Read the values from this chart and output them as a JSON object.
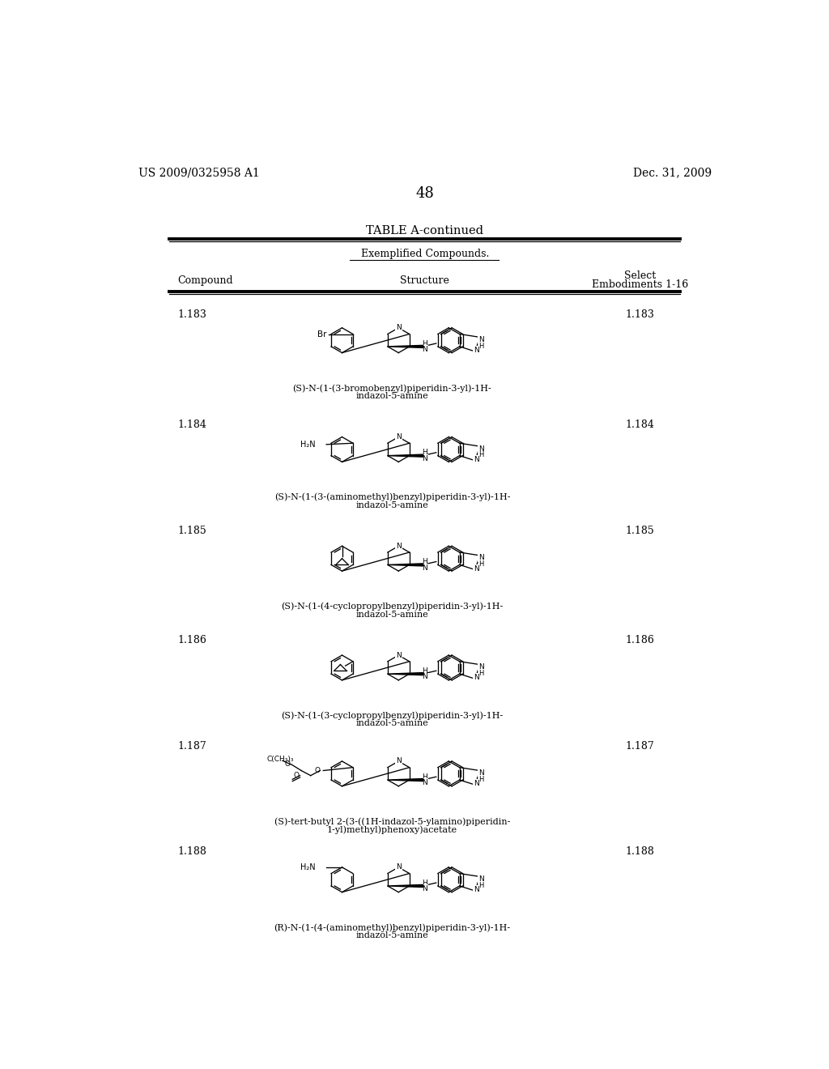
{
  "page_number": "48",
  "patent_number": "US 2009/0325958 A1",
  "patent_date": "Dec. 31, 2009",
  "table_title": "TABLE A-continued",
  "table_subtitle": "Exemplified Compounds.",
  "col_header_compound": "Compound",
  "col_header_structure": "Structure",
  "col_header_select1": "Select",
  "col_header_select2": "Embodiments 1-16",
  "compounds": [
    {
      "id": "1.183",
      "name_line1": "(S)-N-(1-(3-bromobenzyl)piperidin-3-yl)-1H-",
      "name_line2": "indazol-5-amine"
    },
    {
      "id": "1.184",
      "name_line1": "(S)-N-(1-(3-(aminomethyl)benzyl)piperidin-3-yl)-1H-",
      "name_line2": "indazol-5-amine"
    },
    {
      "id": "1.185",
      "name_line1": "(S)-N-(1-(4-cyclopropylbenzyl)piperidin-3-yl)-1H-",
      "name_line2": "indazol-5-amine"
    },
    {
      "id": "1.186",
      "name_line1": "(S)-N-(1-(3-cyclopropylbenzyl)piperidin-3-yl)-1H-",
      "name_line2": "indazol-5-amine"
    },
    {
      "id": "1.187",
      "name_line1": "(S)-tert-butyl 2-(3-((1H-indazol-5-ylamino)piperidin-",
      "name_line2": "1-yl)methyl)phenoxy)acetate"
    },
    {
      "id": "1.188",
      "name_line1": "(R)-N-(1-(4-(aminomethyl)benzyl)piperidin-3-yl)-1H-",
      "name_line2": "indazol-5-amine"
    }
  ],
  "bg_color": "#ffffff",
  "text_color": "#000000"
}
